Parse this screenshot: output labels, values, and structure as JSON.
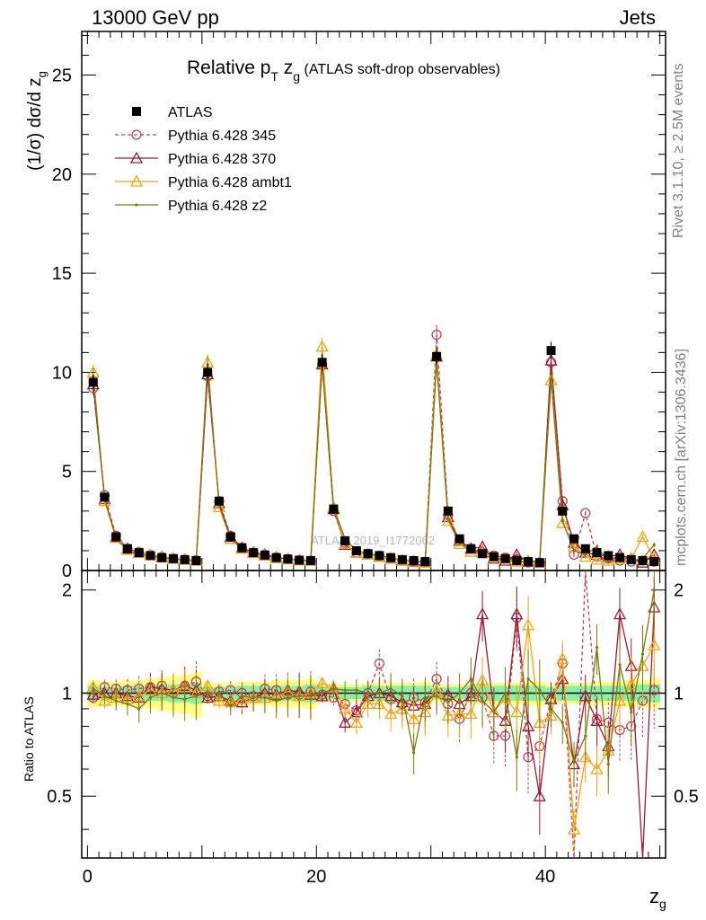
{
  "header": {
    "left": "13000 GeV pp",
    "right": "Jets"
  },
  "plot_title": {
    "main": "Relative p",
    "main_sub": "T",
    "main_var": " z",
    "main_var_sub": "g",
    "paren": " (ATLAS soft-drop observables)"
  },
  "side_labels": {
    "rivet": "Rivet 3.1.10, ≥ 2.5M events",
    "mcplots": "mcplots.cern.ch [arXiv:1306.3436]"
  },
  "watermark": "ATLAS_2019_I1772062",
  "colors": {
    "atlas": "#000000",
    "p345": "#b5475a",
    "p370": "#9b1b30",
    "ambt1": "#f0a216",
    "z2": "#7a7a12",
    "band_inner": "#88f0a8",
    "band_outer": "#ffff88"
  },
  "chart_data": {
    "type": "scatter",
    "xlabel_main": "z",
    "xlabel_sub": "g",
    "ylabel_pre": "(1/σ) dσ/d z",
    "ylabel_sub": "g",
    "ratio_ylabel": "Ratio to ATLAS",
    "xlim": [
      -0.5,
      50.5
    ],
    "ylim_main": [
      0,
      27.2
    ],
    "ylim_ratio": [
      0.33,
      2.28
    ],
    "x_ticks": [
      0,
      20,
      40
    ],
    "y_ticks_main": [
      0,
      5,
      10,
      15,
      20,
      25
    ],
    "y_ticks_ratio": [
      0.5,
      1,
      2
    ],
    "x": [
      0.5,
      1.5,
      2.5,
      3.5,
      4.5,
      5.5,
      6.5,
      7.5,
      8.5,
      9.5,
      10.5,
      11.5,
      12.5,
      13.5,
      14.5,
      15.5,
      16.5,
      17.5,
      18.5,
      19.5,
      20.5,
      21.5,
      22.5,
      23.5,
      24.5,
      25.5,
      26.5,
      27.5,
      28.5,
      29.5,
      30.5,
      31.5,
      32.5,
      33.5,
      34.5,
      35.5,
      36.5,
      37.5,
      38.5,
      39.5,
      40.5,
      41.5,
      42.5,
      43.5,
      44.5,
      45.5,
      46.5,
      47.5,
      48.5,
      49.5
    ],
    "series": [
      {
        "name": "ATLAS",
        "values": [
          9.5,
          3.7,
          1.7,
          1.1,
          0.9,
          0.75,
          0.65,
          0.6,
          0.55,
          0.5,
          10.0,
          3.5,
          1.7,
          1.15,
          0.9,
          0.78,
          0.65,
          0.58,
          0.52,
          0.5,
          10.5,
          3.1,
          1.5,
          1.0,
          0.85,
          0.75,
          0.65,
          0.55,
          0.5,
          0.45,
          10.8,
          3.0,
          1.6,
          1.1,
          0.85,
          0.7,
          0.6,
          0.5,
          0.45,
          0.4,
          11.1,
          3.0,
          1.6,
          1.1,
          0.9,
          0.75,
          0.65,
          0.55,
          0.5,
          0.45
        ],
        "ratio": [
          1.0,
          1.0,
          1.0,
          1.0,
          1.0,
          1.0,
          1.0,
          1.0,
          1.0,
          1.0,
          1.0,
          1.0,
          1.0,
          1.0,
          1.0,
          1.0,
          1.0,
          1.0,
          1.0,
          1.0,
          1.0,
          1.0,
          1.0,
          1.0,
          1.0,
          1.0,
          1.0,
          1.0,
          1.0,
          1.0,
          1.0,
          1.0,
          1.0,
          1.0,
          1.0,
          1.0,
          1.0,
          1.0,
          1.0,
          1.0,
          1.0,
          1.0,
          1.0,
          1.0,
          1.0,
          1.0,
          1.0,
          1.0,
          1.0,
          1.0
        ],
        "band_inner": [
          0.05,
          0.04,
          0.04,
          0.05,
          0.05,
          0.05,
          0.05,
          0.06,
          0.06,
          0.07,
          0.04,
          0.04,
          0.04,
          0.05,
          0.05,
          0.05,
          0.05,
          0.05,
          0.05,
          0.06,
          0.04,
          0.04,
          0.04,
          0.04,
          0.05,
          0.05,
          0.05,
          0.05,
          0.05,
          0.05,
          0.04,
          0.04,
          0.04,
          0.05,
          0.05,
          0.05,
          0.05,
          0.05,
          0.05,
          0.05,
          0.04,
          0.05,
          0.05,
          0.05,
          0.05,
          0.05,
          0.05,
          0.05,
          0.06,
          0.06
        ],
        "band_outer": [
          0.09,
          0.08,
          0.08,
          0.09,
          0.09,
          0.1,
          0.11,
          0.12,
          0.13,
          0.15,
          0.07,
          0.07,
          0.07,
          0.08,
          0.08,
          0.08,
          0.09,
          0.09,
          0.09,
          0.1,
          0.06,
          0.06,
          0.06,
          0.06,
          0.07,
          0.07,
          0.07,
          0.07,
          0.07,
          0.08,
          0.06,
          0.06,
          0.06,
          0.07,
          0.07,
          0.07,
          0.07,
          0.07,
          0.08,
          0.08,
          0.06,
          0.07,
          0.07,
          0.07,
          0.08,
          0.08,
          0.08,
          0.09,
          0.09,
          0.1
        ]
      },
      {
        "name": "Pythia 6.428 345",
        "values": [
          9.2,
          3.8,
          1.75,
          1.1,
          0.93,
          0.78,
          0.68,
          0.6,
          0.55,
          0.52,
          9.8,
          3.5,
          1.75,
          1.15,
          0.9,
          0.8,
          0.66,
          0.58,
          0.52,
          0.5,
          10.4,
          3.0,
          1.4,
          0.9,
          0.85,
          0.75,
          0.62,
          0.5,
          0.48,
          0.44,
          11.9,
          2.8,
          1.5,
          1.1,
          0.9,
          0.75,
          0.65,
          0.55,
          0.4,
          0.4,
          10.5,
          3.5,
          0.8,
          2.9,
          0.7,
          0.6,
          0.5,
          0.45,
          0.5,
          0.45
        ],
        "ratio": [
          0.97,
          1.04,
          1.03,
          1.02,
          1.03,
          1.04,
          1.05,
          1.0,
          1.05,
          1.08,
          0.98,
          1.01,
          1.02,
          1.0,
          0.98,
          1.03,
          1.02,
          0.99,
          0.99,
          1.01,
          0.99,
          0.97,
          0.93,
          0.89,
          1.0,
          1.22,
          0.96,
          0.93,
          0.97,
          0.94,
          1.1,
          0.93,
          0.84,
          1.0,
          0.97,
          0.75,
          0.75,
          1.66,
          0.65,
          0.7,
          0.96,
          1.22,
          0.3,
          2.4,
          0.84,
          0.82,
          0.78,
          0.8,
          0.95,
          1.02
        ]
      },
      {
        "name": "Pythia 6.428 370",
        "values": [
          9.4,
          3.6,
          1.7,
          1.1,
          0.9,
          0.78,
          0.68,
          0.6,
          0.55,
          0.5,
          9.9,
          3.4,
          1.7,
          1.15,
          0.92,
          0.8,
          0.66,
          0.58,
          0.52,
          0.5,
          10.4,
          3.1,
          1.3,
          0.9,
          0.8,
          0.7,
          0.6,
          0.5,
          0.45,
          0.42,
          10.8,
          2.7,
          1.5,
          1.1,
          1.2,
          0.6,
          0.5,
          0.8,
          0.45,
          0.4,
          10.6,
          3.3,
          1.4,
          0.9,
          0.8,
          0.7,
          0.8,
          0.6,
          0.4,
          0.8
        ],
        "ratio": [
          0.99,
          1.0,
          1.0,
          0.98,
          0.97,
          1.04,
          1.03,
          1.02,
          1.05,
          1.02,
          0.97,
          0.98,
          0.95,
          0.94,
          0.97,
          1.0,
          0.99,
          1.02,
          1.01,
          0.99,
          0.98,
          1.03,
          0.82,
          0.88,
          0.98,
          1.0,
          0.98,
          0.94,
          0.92,
          0.93,
          1.01,
          0.99,
          0.93,
          0.98,
          1.7,
          0.88,
          0.83,
          1.7,
          0.8,
          0.5,
          0.96,
          1.1,
          0.62,
          0.98,
          0.83,
          0.7,
          1.7,
          1.2,
          0.3,
          1.78
        ]
      },
      {
        "name": "Pythia 6.428 ambt1",
        "values": [
          10.0,
          3.5,
          1.65,
          1.05,
          0.9,
          0.78,
          0.65,
          0.6,
          0.56,
          0.5,
          10.5,
          3.2,
          1.6,
          1.1,
          0.88,
          0.75,
          0.63,
          0.58,
          0.52,
          0.5,
          11.3,
          3.2,
          1.35,
          0.9,
          0.8,
          0.7,
          0.6,
          0.5,
          0.42,
          0.4,
          10.9,
          2.5,
          1.35,
          0.95,
          0.9,
          0.7,
          0.6,
          0.45,
          0.5,
          0.4,
          9.6,
          2.4,
          1.2,
          0.7,
          0.55,
          0.5,
          0.6,
          0.6,
          1.7,
          0.6
        ],
        "ratio": [
          1.04,
          0.95,
          0.97,
          0.96,
          0.98,
          1.02,
          1.0,
          1.02,
          1.04,
          1.0,
          1.05,
          0.95,
          0.94,
          0.96,
          0.97,
          0.97,
          0.98,
          1.01,
          0.98,
          1.0,
          1.07,
          1.04,
          0.9,
          0.82,
          0.93,
          0.93,
          0.87,
          0.9,
          0.84,
          0.88,
          1.01,
          0.86,
          0.87,
          0.87,
          1.09,
          0.88,
          0.97,
          0.88,
          1.58,
          0.82,
          0.86,
          1.26,
          0.4,
          0.65,
          0.6,
          0.68,
          0.95,
          1.06,
          1.2,
          1.38
        ]
      },
      {
        "name": "Pythia 6.428 z2",
        "values": [
          9.8,
          3.6,
          1.6,
          1.0,
          0.85,
          0.72,
          0.62,
          0.58,
          0.52,
          0.48,
          10.4,
          3.3,
          1.6,
          1.1,
          0.88,
          0.75,
          0.64,
          0.57,
          0.51,
          0.49,
          10.5,
          3.2,
          1.6,
          1.0,
          0.85,
          0.75,
          0.65,
          0.52,
          0.48,
          0.42,
          10.5,
          2.6,
          1.4,
          1.0,
          0.8,
          0.6,
          0.6,
          0.35,
          0.5,
          0.45,
          9.7,
          2.5,
          1.0,
          0.8,
          1.2,
          0.45,
          0.8,
          0.5,
          0.6,
          1.3
        ],
        "ratio": [
          1.03,
          0.98,
          0.95,
          0.93,
          0.9,
          0.97,
          1.0,
          0.97,
          0.96,
          0.98,
          1.0,
          1.0,
          0.92,
          0.98,
          0.97,
          0.97,
          0.95,
          0.97,
          0.98,
          0.98,
          1.0,
          1.03,
          1.02,
          1.02,
          1.0,
          1.0,
          1.03,
          0.98,
          0.67,
          0.97,
          0.98,
          0.94,
          1.0,
          1.1,
          0.95,
          0.88,
          1.0,
          0.65,
          1.1,
          1.02,
          0.9,
          0.82,
          0.63,
          0.75,
          1.36,
          0.62,
          1.21,
          0.88,
          1.3,
          2.0
        ]
      }
    ]
  }
}
